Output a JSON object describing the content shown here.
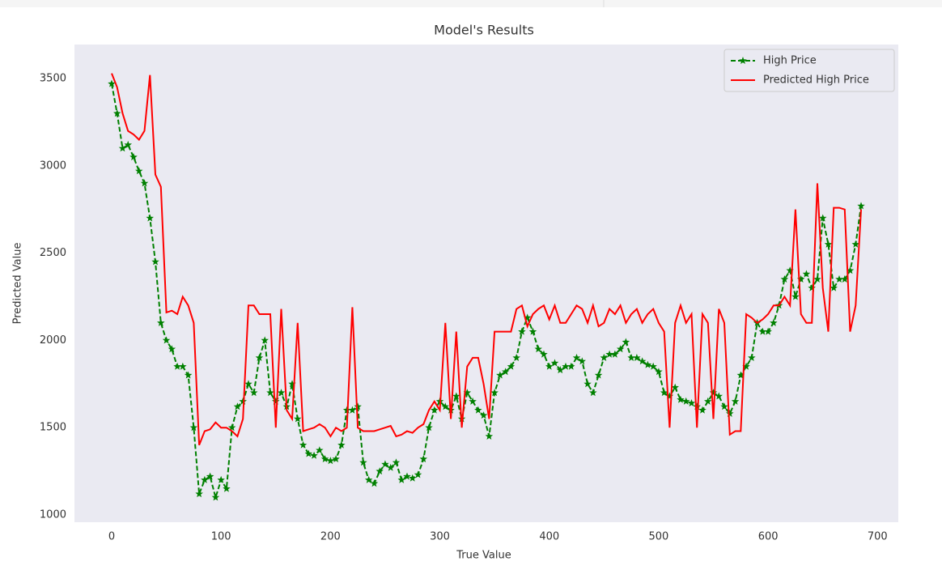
{
  "chart_data": {
    "type": "line",
    "title": "Model's Results",
    "x_label": "True Value",
    "y_label": "Predicted Value",
    "x": [
      0,
      5,
      10,
      15,
      20,
      25,
      30,
      35,
      40,
      45,
      50,
      55,
      60,
      65,
      70,
      75,
      80,
      85,
      90,
      95,
      100,
      105,
      110,
      115,
      120,
      125,
      130,
      135,
      140,
      145,
      150,
      155,
      160,
      165,
      170,
      175,
      180,
      185,
      190,
      195,
      200,
      205,
      210,
      215,
      220,
      225,
      230,
      235,
      240,
      245,
      250,
      255,
      260,
      265,
      270,
      275,
      280,
      285,
      290,
      295,
      300,
      305,
      310,
      315,
      320,
      325,
      330,
      335,
      340,
      345,
      350,
      355,
      360,
      365,
      370,
      375,
      380,
      385,
      390,
      395,
      400,
      405,
      410,
      415,
      420,
      425,
      430,
      435,
      440,
      445,
      450,
      455,
      460,
      465,
      470,
      475,
      480,
      485,
      490,
      495,
      500,
      505,
      510,
      515,
      520,
      525,
      530,
      535,
      540,
      545,
      550,
      555,
      560,
      565,
      570,
      575,
      580,
      585,
      590,
      595,
      600,
      605,
      610,
      615,
      620,
      625,
      630,
      635,
      640,
      645,
      650,
      655,
      660,
      665,
      670,
      675,
      680,
      685
    ],
    "series": [
      {
        "name": "High Price",
        "color": "#008000",
        "style": "dashed-star",
        "values": [
          3470,
          3300,
          3100,
          3120,
          3050,
          2970,
          2900,
          2700,
          2450,
          2100,
          2000,
          1950,
          1850,
          1850,
          1800,
          1500,
          1120,
          1200,
          1220,
          1100,
          1200,
          1150,
          1500,
          1620,
          1650,
          1750,
          1700,
          1900,
          2000,
          1700,
          1650,
          1700,
          1620,
          1750,
          1550,
          1400,
          1350,
          1340,
          1370,
          1320,
          1310,
          1320,
          1400,
          1600,
          1600,
          1620,
          1300,
          1200,
          1180,
          1250,
          1290,
          1270,
          1300,
          1200,
          1220,
          1210,
          1230,
          1320,
          1500,
          1600,
          1650,
          1620,
          1600,
          1680,
          1550,
          1700,
          1650,
          1600,
          1570,
          1450,
          1700,
          1800,
          1820,
          1850,
          1900,
          2050,
          2130,
          2050,
          1950,
          1920,
          1850,
          1870,
          1830,
          1850,
          1850,
          1900,
          1880,
          1750,
          1700,
          1800,
          1900,
          1920,
          1920,
          1950,
          1990,
          1900,
          1900,
          1880,
          1860,
          1850,
          1820,
          1700,
          1680,
          1730,
          1660,
          1650,
          1640,
          1620,
          1600,
          1650,
          1700,
          1680,
          1620,
          1580,
          1650,
          1800,
          1850,
          1900,
          2100,
          2050,
          2050,
          2100,
          2200,
          2350,
          2400,
          2250,
          2350,
          2380,
          2300,
          2350,
          2700,
          2550,
          2300,
          2350,
          2350,
          2400,
          2550,
          2770
        ]
      },
      {
        "name": "Predicted High Price",
        "color": "#ff0000",
        "style": "solid",
        "values": [
          3530,
          3450,
          3300,
          3200,
          3180,
          3150,
          3200,
          3520,
          2950,
          2880,
          2160,
          2170,
          2150,
          2250,
          2200,
          2100,
          1400,
          1480,
          1490,
          1530,
          1500,
          1500,
          1480,
          1450,
          1550,
          2200,
          2200,
          2150,
          2150,
          2150,
          1500,
          2180,
          1600,
          1550,
          2100,
          1480,
          1490,
          1500,
          1520,
          1500,
          1450,
          1500,
          1480,
          1500,
          2190,
          1500,
          1480,
          1480,
          1480,
          1490,
          1500,
          1510,
          1450,
          1460,
          1480,
          1470,
          1500,
          1520,
          1600,
          1650,
          1600,
          2100,
          1550,
          2050,
          1500,
          1850,
          1900,
          1900,
          1750,
          1550,
          2050,
          2050,
          2050,
          2050,
          2180,
          2200,
          2080,
          2150,
          2180,
          2200,
          2120,
          2200,
          2100,
          2100,
          2150,
          2200,
          2180,
          2100,
          2200,
          2080,
          2100,
          2180,
          2150,
          2200,
          2100,
          2150,
          2180,
          2100,
          2150,
          2180,
          2100,
          2050,
          1500,
          2100,
          2200,
          2100,
          2150,
          1500,
          2150,
          2100,
          1550,
          2180,
          2100,
          1460,
          1480,
          1480,
          2150,
          2130,
          2100,
          2120,
          2150,
          2200,
          2200,
          2250,
          2200,
          2750,
          2150,
          2100,
          2100,
          2900,
          2300,
          2050,
          2760,
          2760,
          2750,
          2050,
          2200,
          2750
        ]
      }
    ],
    "xlim": [
      -34,
      719
    ],
    "ylim": [
      958,
      3695
    ],
    "xticks": [
      0,
      100,
      200,
      300,
      400,
      500,
      600,
      700
    ],
    "yticks": [
      1000,
      1500,
      2000,
      2500,
      3000,
      3500
    ],
    "grid": false,
    "legend": "upper right",
    "background": "#eaeaf2"
  }
}
